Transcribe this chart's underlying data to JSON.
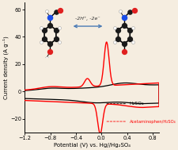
{
  "xlim": [
    -1.2,
    0.9
  ],
  "ylim": [
    -30,
    65
  ],
  "xticks": [
    -1.2,
    -0.8,
    -0.4,
    0.0,
    0.4,
    0.8
  ],
  "yticks": [
    -20,
    0,
    20,
    40,
    60
  ],
  "xlabel": "Potential (V) vs. Hg//Hg₂SO₄",
  "ylabel": "Current density (A g⁻¹)",
  "h2so4_label": "H₂SO₄",
  "acet_label": "Acetaminophen/H₂SO₄",
  "reaction_arrow_label": "-2H⁺, -2e⁻",
  "bg_color": "#f5ede0",
  "curve_black": "black",
  "curve_red": "red"
}
